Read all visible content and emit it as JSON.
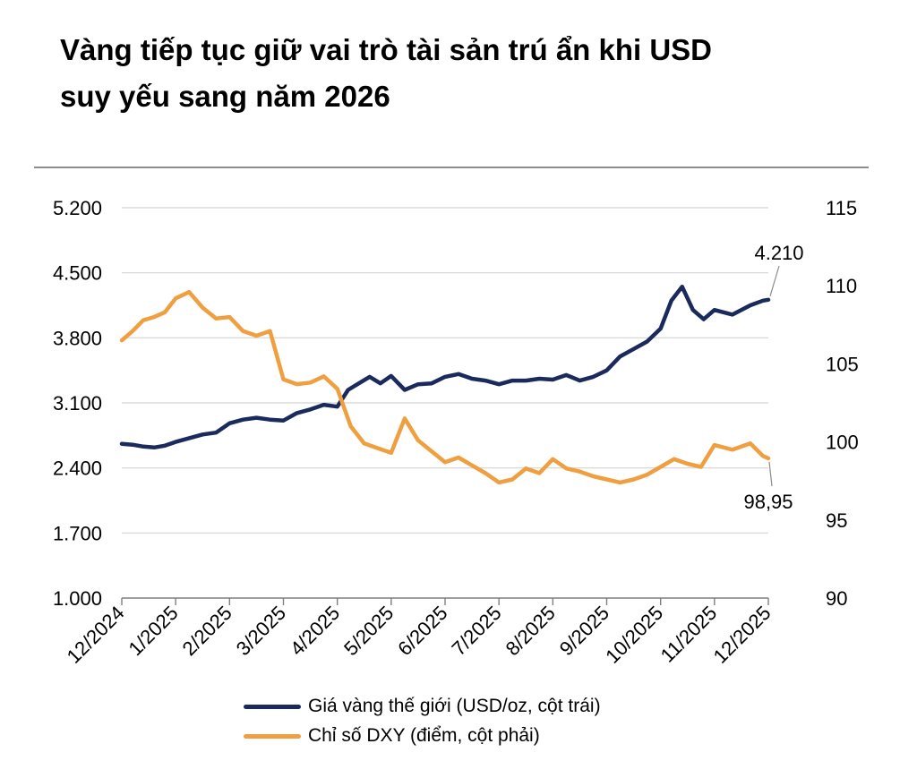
{
  "title": {
    "line1": "Vàng tiếp tục giữ vai trò tài sản trú ẩn khi USD",
    "line2": "suy yếu sang năm 2026"
  },
  "chart_data": {
    "type": "line",
    "title": "Vàng tiếp tục giữ vai trò tài sản trú ẩn khi USD suy yếu sang năm 2026",
    "x_ticks": [
      "12/2024",
      "1/2025",
      "2/2025",
      "3/2025",
      "4/2025",
      "5/2025",
      "6/2025",
      "7/2025",
      "8/2025",
      "9/2025",
      "10/2025",
      "11/2025",
      "12/2025"
    ],
    "y_left": {
      "lim": [
        1000,
        5200
      ],
      "ticks": [
        "1.000",
        "1.700",
        "2.400",
        "3.100",
        "3.800",
        "4.500",
        "5.200"
      ]
    },
    "y_right": {
      "lim": [
        90,
        115
      ],
      "ticks": [
        "90",
        "95",
        "100",
        "105",
        "110",
        "115"
      ]
    },
    "grid": "horizontal",
    "legend_position": "bottom",
    "series": [
      {
        "name": "Giá vàng thế giới (USD/oz, cột trái)",
        "axis": "left",
        "color": "#1b2a5c",
        "end_label": "4.210",
        "points": [
          [
            "12/2024",
            2660
          ],
          [
            "12/2024",
            2650
          ],
          [
            "12/2024",
            2630
          ],
          [
            "12/2024",
            2620
          ],
          [
            "12/2024",
            2640
          ],
          [
            "1/2025",
            2680
          ],
          [
            "1/2025",
            2720
          ],
          [
            "1/2025",
            2760
          ],
          [
            "1/2025",
            2780
          ],
          [
            "2/2025",
            2880
          ],
          [
            "2/2025",
            2920
          ],
          [
            "2/2025",
            2940
          ],
          [
            "2/2025",
            2920
          ],
          [
            "3/2025",
            2910
          ],
          [
            "3/2025",
            2990
          ],
          [
            "3/2025",
            3030
          ],
          [
            "3/2025",
            3080
          ],
          [
            "4/2025",
            3060
          ],
          [
            "4/2025",
            3240
          ],
          [
            "4/2025",
            3310
          ],
          [
            "4/2025",
            3380
          ],
          [
            "4/2025",
            3310
          ],
          [
            "5/2025",
            3390
          ],
          [
            "5/2025",
            3240
          ],
          [
            "5/2025",
            3300
          ],
          [
            "5/2025",
            3310
          ],
          [
            "6/2025",
            3380
          ],
          [
            "6/2025",
            3410
          ],
          [
            "6/2025",
            3360
          ],
          [
            "6/2025",
            3340
          ],
          [
            "7/2025",
            3300
          ],
          [
            "7/2025",
            3340
          ],
          [
            "7/2025",
            3340
          ],
          [
            "7/2025",
            3360
          ],
          [
            "8/2025",
            3350
          ],
          [
            "8/2025",
            3400
          ],
          [
            "8/2025",
            3340
          ],
          [
            "8/2025",
            3380
          ],
          [
            "9/2025",
            3450
          ],
          [
            "9/2025",
            3600
          ],
          [
            "9/2025",
            3680
          ],
          [
            "9/2025",
            3760
          ],
          [
            "10/2025",
            3900
          ],
          [
            "10/2025",
            4200
          ],
          [
            "10/2025",
            4350
          ],
          [
            "10/2025",
            4100
          ],
          [
            "10/2025",
            4000
          ],
          [
            "11/2025",
            4100
          ],
          [
            "11/2025",
            4050
          ],
          [
            "11/2025",
            4150
          ],
          [
            "12/2025",
            4200
          ],
          [
            "12/2025",
            4210
          ]
        ]
      },
      {
        "name": "Chỉ số DXY (điểm, cột phải)",
        "axis": "right",
        "color": "#ef9f3f",
        "end_label": "98,95",
        "points": [
          [
            "12/2024",
            106.5
          ],
          [
            "12/2024",
            107.1
          ],
          [
            "12/2024",
            107.8
          ],
          [
            "12/2024",
            108.0
          ],
          [
            "12/2024",
            108.3
          ],
          [
            "1/2025",
            109.2
          ],
          [
            "1/2025",
            109.6
          ],
          [
            "1/2025",
            108.6
          ],
          [
            "1/2025",
            107.9
          ],
          [
            "2/2025",
            108.0
          ],
          [
            "2/2025",
            107.1
          ],
          [
            "2/2025",
            106.8
          ],
          [
            "2/2025",
            107.1
          ],
          [
            "3/2025",
            104.0
          ],
          [
            "3/2025",
            103.7
          ],
          [
            "3/2025",
            103.8
          ],
          [
            "3/2025",
            104.2
          ],
          [
            "4/2025",
            103.4
          ],
          [
            "4/2025",
            101.0
          ],
          [
            "4/2025",
            99.9
          ],
          [
            "4/2025",
            99.6
          ],
          [
            "5/2025",
            99.3
          ],
          [
            "5/2025",
            101.5
          ],
          [
            "5/2025",
            100.1
          ],
          [
            "5/2025",
            99.4
          ],
          [
            "6/2025",
            98.7
          ],
          [
            "6/2025",
            99.0
          ],
          [
            "6/2025",
            98.5
          ],
          [
            "6/2025",
            98.0
          ],
          [
            "7/2025",
            97.4
          ],
          [
            "7/2025",
            97.6
          ],
          [
            "7/2025",
            98.3
          ],
          [
            "7/2025",
            98.0
          ],
          [
            "8/2025",
            98.9
          ],
          [
            "8/2025",
            98.3
          ],
          [
            "8/2025",
            98.1
          ],
          [
            "8/2025",
            97.8
          ],
          [
            "9/2025",
            97.6
          ],
          [
            "9/2025",
            97.4
          ],
          [
            "9/2025",
            97.6
          ],
          [
            "9/2025",
            97.9
          ],
          [
            "10/2025",
            98.4
          ],
          [
            "10/2025",
            98.9
          ],
          [
            "10/2025",
            98.6
          ],
          [
            "10/2025",
            98.4
          ],
          [
            "11/2025",
            99.8
          ],
          [
            "11/2025",
            99.5
          ],
          [
            "11/2025",
            99.9
          ],
          [
            "12/2025",
            99.1
          ],
          [
            "12/2025",
            98.95
          ]
        ]
      }
    ]
  }
}
